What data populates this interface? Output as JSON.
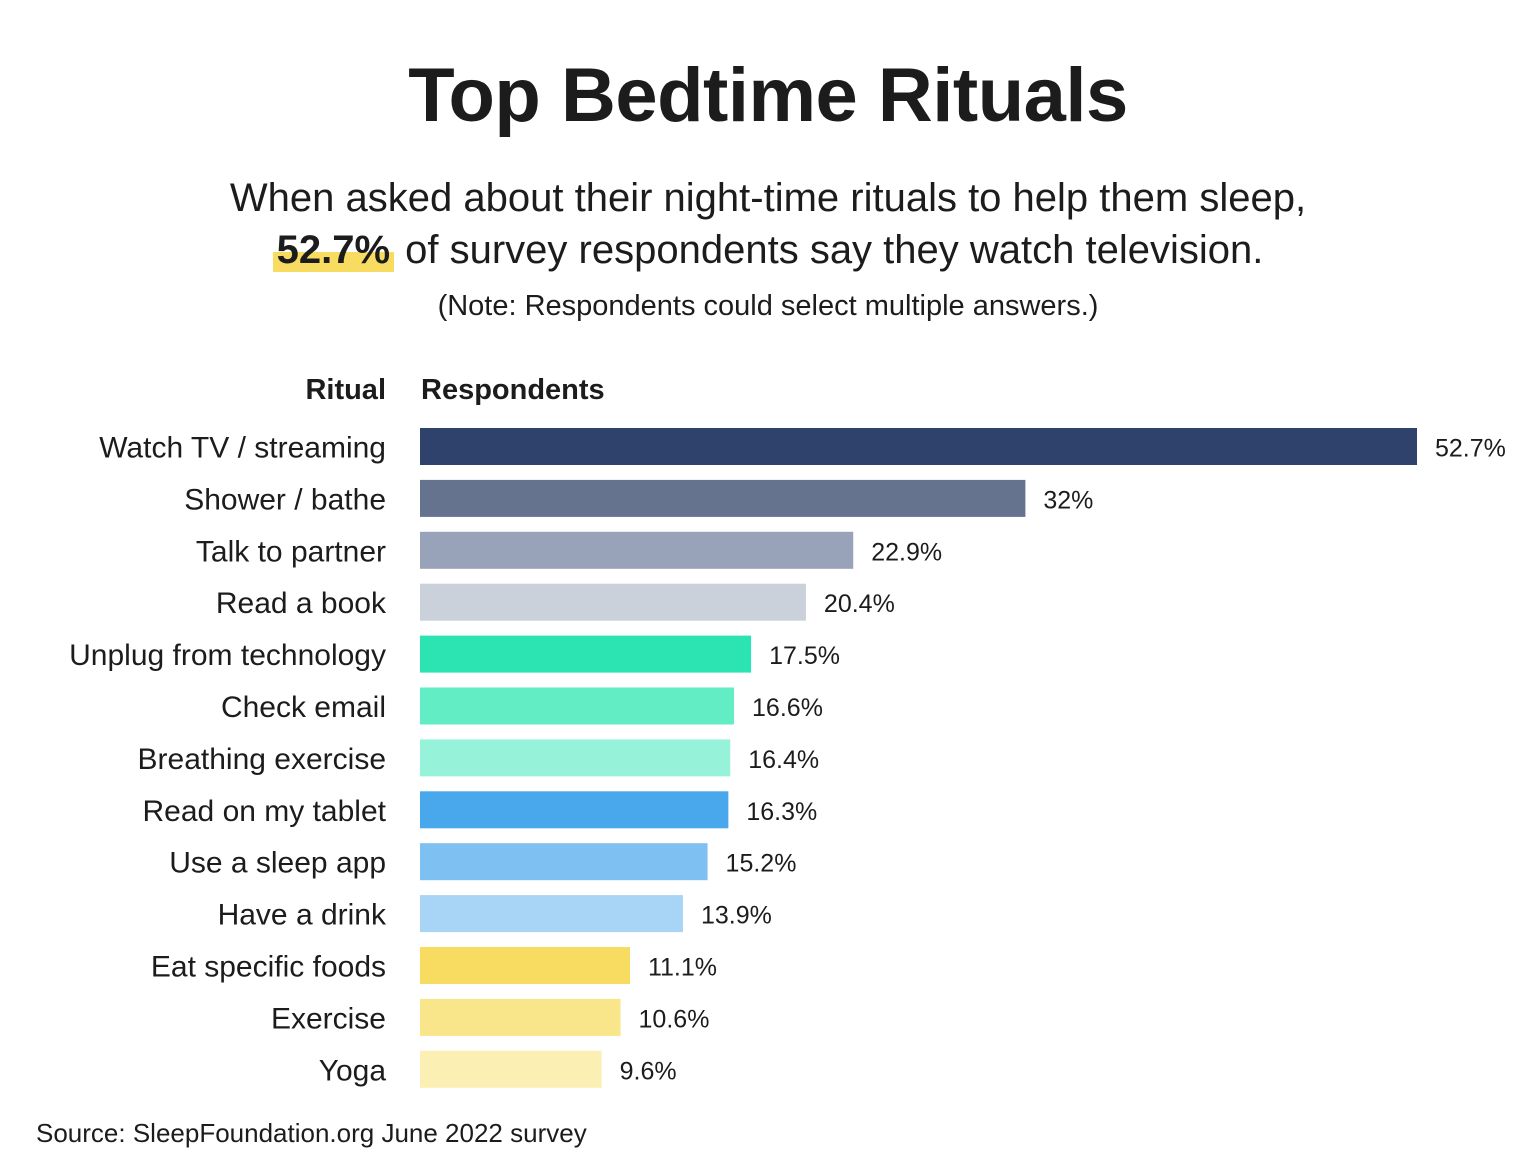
{
  "title": "Top Bedtime Rituals",
  "subtitle_line1": "When asked about their night-time rituals to help them sleep,",
  "subtitle_highlight": "52.7%",
  "subtitle_line2_rest": " of survey respondents say they watch television.",
  "note": "(Note: Respondents could select multiple answers.)",
  "source": "Source: SleepFoundation.org June 2022 survey",
  "chart_data": {
    "type": "bar",
    "orientation": "horizontal",
    "category_header": "Ritual",
    "value_header": "Respondents",
    "unit": "%",
    "xlim": [
      0,
      52.7
    ],
    "grid": false,
    "categories": [
      "Watch TV / streaming",
      "Shower / bathe",
      "Talk to partner",
      "Read a book",
      "Unplug from technology",
      "Check email",
      "Breathing exercise",
      "Read on my tablet",
      "Use a sleep app",
      "Have a drink",
      "Eat specific foods",
      "Exercise",
      "Yoga"
    ],
    "values": [
      52.7,
      32,
      22.9,
      20.4,
      17.5,
      16.6,
      16.4,
      16.3,
      15.2,
      13.9,
      11.1,
      10.6,
      9.6
    ],
    "value_labels": [
      "52.7%",
      "32%",
      "22.9%",
      "20.4%",
      "17.5%",
      "16.6%",
      "16.4%",
      "16.3%",
      "15.2%",
      "13.9%",
      "11.1%",
      "10.6%",
      "9.6%"
    ],
    "colors": [
      "#2e426c",
      "#65738f",
      "#98a2b8",
      "#cbd1db",
      "#2be4b2",
      "#63edc5",
      "#97f2da",
      "#49a8ec",
      "#7dc0f1",
      "#a8d4f5",
      "#f8dc62",
      "#f9e68b",
      "#fbefb4"
    ]
  }
}
